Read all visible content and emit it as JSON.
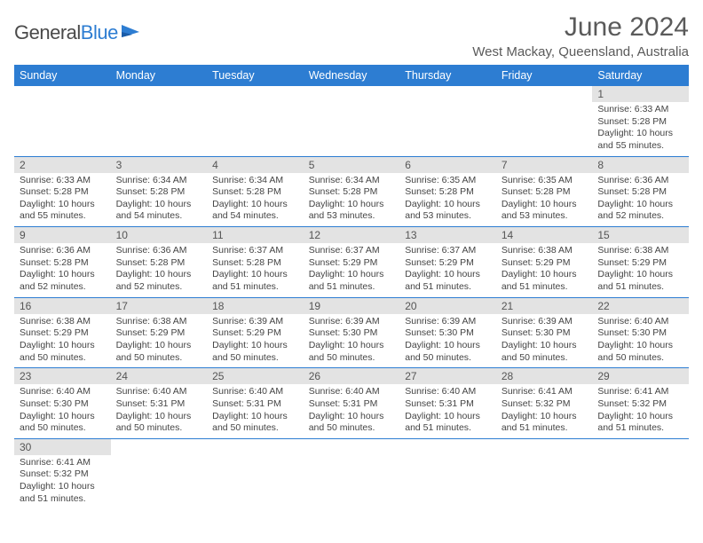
{
  "brand": {
    "name_gray": "General",
    "name_blue": "Blue"
  },
  "title": "June 2024",
  "location": "West Mackay, Queensland, Australia",
  "colors": {
    "header_bg": "#2d7dd2",
    "header_text": "#ffffff",
    "daynum_bg": "#e3e3e3",
    "row_border": "#2d7dd2",
    "text": "#444444",
    "title_text": "#5a5a5a"
  },
  "daysOfWeek": [
    "Sunday",
    "Monday",
    "Tuesday",
    "Wednesday",
    "Thursday",
    "Friday",
    "Saturday"
  ],
  "weeks": [
    [
      null,
      null,
      null,
      null,
      null,
      null,
      {
        "n": "1",
        "sr": "6:33 AM",
        "ss": "5:28 PM",
        "dl": "10 hours and 55 minutes."
      }
    ],
    [
      {
        "n": "2",
        "sr": "6:33 AM",
        "ss": "5:28 PM",
        "dl": "10 hours and 55 minutes."
      },
      {
        "n": "3",
        "sr": "6:34 AM",
        "ss": "5:28 PM",
        "dl": "10 hours and 54 minutes."
      },
      {
        "n": "4",
        "sr": "6:34 AM",
        "ss": "5:28 PM",
        "dl": "10 hours and 54 minutes."
      },
      {
        "n": "5",
        "sr": "6:34 AM",
        "ss": "5:28 PM",
        "dl": "10 hours and 53 minutes."
      },
      {
        "n": "6",
        "sr": "6:35 AM",
        "ss": "5:28 PM",
        "dl": "10 hours and 53 minutes."
      },
      {
        "n": "7",
        "sr": "6:35 AM",
        "ss": "5:28 PM",
        "dl": "10 hours and 53 minutes."
      },
      {
        "n": "8",
        "sr": "6:36 AM",
        "ss": "5:28 PM",
        "dl": "10 hours and 52 minutes."
      }
    ],
    [
      {
        "n": "9",
        "sr": "6:36 AM",
        "ss": "5:28 PM",
        "dl": "10 hours and 52 minutes."
      },
      {
        "n": "10",
        "sr": "6:36 AM",
        "ss": "5:28 PM",
        "dl": "10 hours and 52 minutes."
      },
      {
        "n": "11",
        "sr": "6:37 AM",
        "ss": "5:28 PM",
        "dl": "10 hours and 51 minutes."
      },
      {
        "n": "12",
        "sr": "6:37 AM",
        "ss": "5:29 PM",
        "dl": "10 hours and 51 minutes."
      },
      {
        "n": "13",
        "sr": "6:37 AM",
        "ss": "5:29 PM",
        "dl": "10 hours and 51 minutes."
      },
      {
        "n": "14",
        "sr": "6:38 AM",
        "ss": "5:29 PM",
        "dl": "10 hours and 51 minutes."
      },
      {
        "n": "15",
        "sr": "6:38 AM",
        "ss": "5:29 PM",
        "dl": "10 hours and 51 minutes."
      }
    ],
    [
      {
        "n": "16",
        "sr": "6:38 AM",
        "ss": "5:29 PM",
        "dl": "10 hours and 50 minutes."
      },
      {
        "n": "17",
        "sr": "6:38 AM",
        "ss": "5:29 PM",
        "dl": "10 hours and 50 minutes."
      },
      {
        "n": "18",
        "sr": "6:39 AM",
        "ss": "5:29 PM",
        "dl": "10 hours and 50 minutes."
      },
      {
        "n": "19",
        "sr": "6:39 AM",
        "ss": "5:30 PM",
        "dl": "10 hours and 50 minutes."
      },
      {
        "n": "20",
        "sr": "6:39 AM",
        "ss": "5:30 PM",
        "dl": "10 hours and 50 minutes."
      },
      {
        "n": "21",
        "sr": "6:39 AM",
        "ss": "5:30 PM",
        "dl": "10 hours and 50 minutes."
      },
      {
        "n": "22",
        "sr": "6:40 AM",
        "ss": "5:30 PM",
        "dl": "10 hours and 50 minutes."
      }
    ],
    [
      {
        "n": "23",
        "sr": "6:40 AM",
        "ss": "5:30 PM",
        "dl": "10 hours and 50 minutes."
      },
      {
        "n": "24",
        "sr": "6:40 AM",
        "ss": "5:31 PM",
        "dl": "10 hours and 50 minutes."
      },
      {
        "n": "25",
        "sr": "6:40 AM",
        "ss": "5:31 PM",
        "dl": "10 hours and 50 minutes."
      },
      {
        "n": "26",
        "sr": "6:40 AM",
        "ss": "5:31 PM",
        "dl": "10 hours and 50 minutes."
      },
      {
        "n": "27",
        "sr": "6:40 AM",
        "ss": "5:31 PM",
        "dl": "10 hours and 51 minutes."
      },
      {
        "n": "28",
        "sr": "6:41 AM",
        "ss": "5:32 PM",
        "dl": "10 hours and 51 minutes."
      },
      {
        "n": "29",
        "sr": "6:41 AM",
        "ss": "5:32 PM",
        "dl": "10 hours and 51 minutes."
      }
    ],
    [
      {
        "n": "30",
        "sr": "6:41 AM",
        "ss": "5:32 PM",
        "dl": "10 hours and 51 minutes."
      },
      null,
      null,
      null,
      null,
      null,
      null
    ]
  ],
  "labels": {
    "sunrise": "Sunrise:",
    "sunset": "Sunset:",
    "daylight": "Daylight:"
  }
}
